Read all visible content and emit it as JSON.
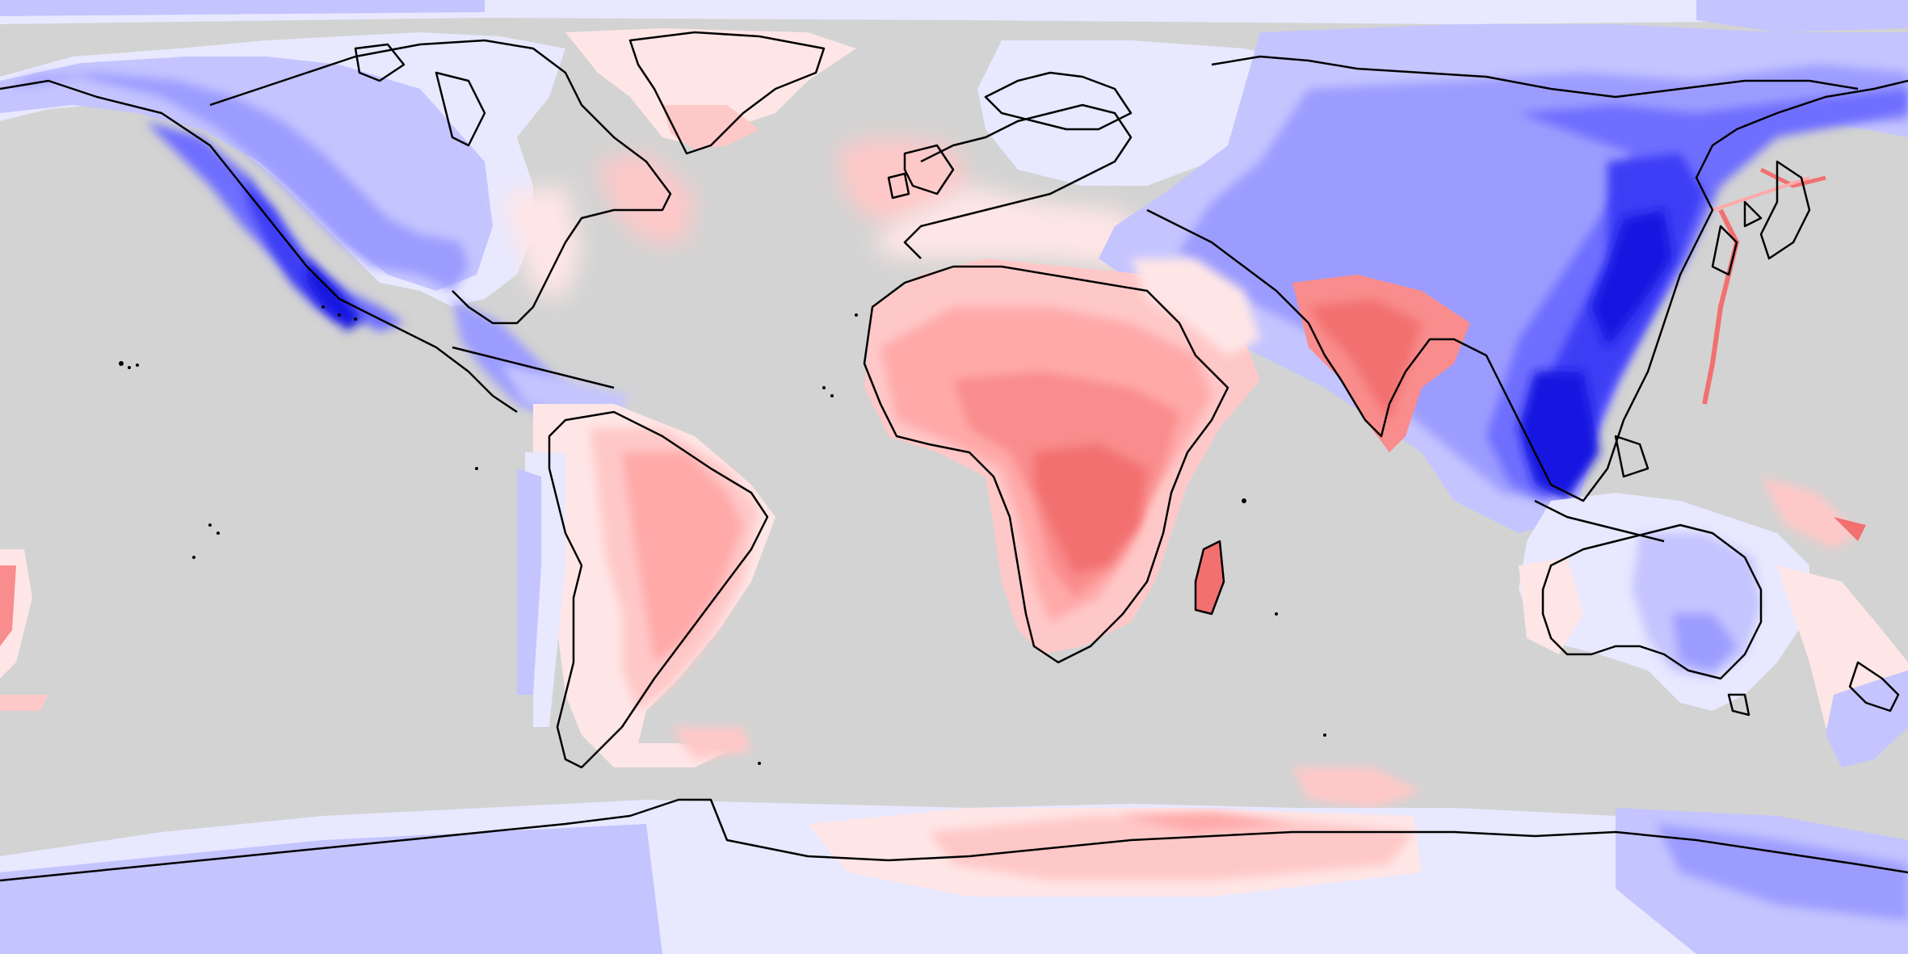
{
  "map": {
    "projection": "equirectangular",
    "extent": {
      "lon": [
        -180,
        180
      ],
      "lat": [
        -90,
        90
      ]
    },
    "ocean_color": "#d3d3d3",
    "coastline_color": "#000000",
    "scale": {
      "type": "diverging",
      "negative_colors": [
        "#e8e8ff",
        "#c4c4ff",
        "#9c9cff",
        "#6e6eff",
        "#3e3ef5",
        "#1414e0"
      ],
      "positive_colors": [
        "#ffe6e6",
        "#ffc8c8",
        "#ffa9a9",
        "#f98c8c",
        "#f27070",
        "#ea5858"
      ]
    },
    "legend": null,
    "title": ""
  }
}
